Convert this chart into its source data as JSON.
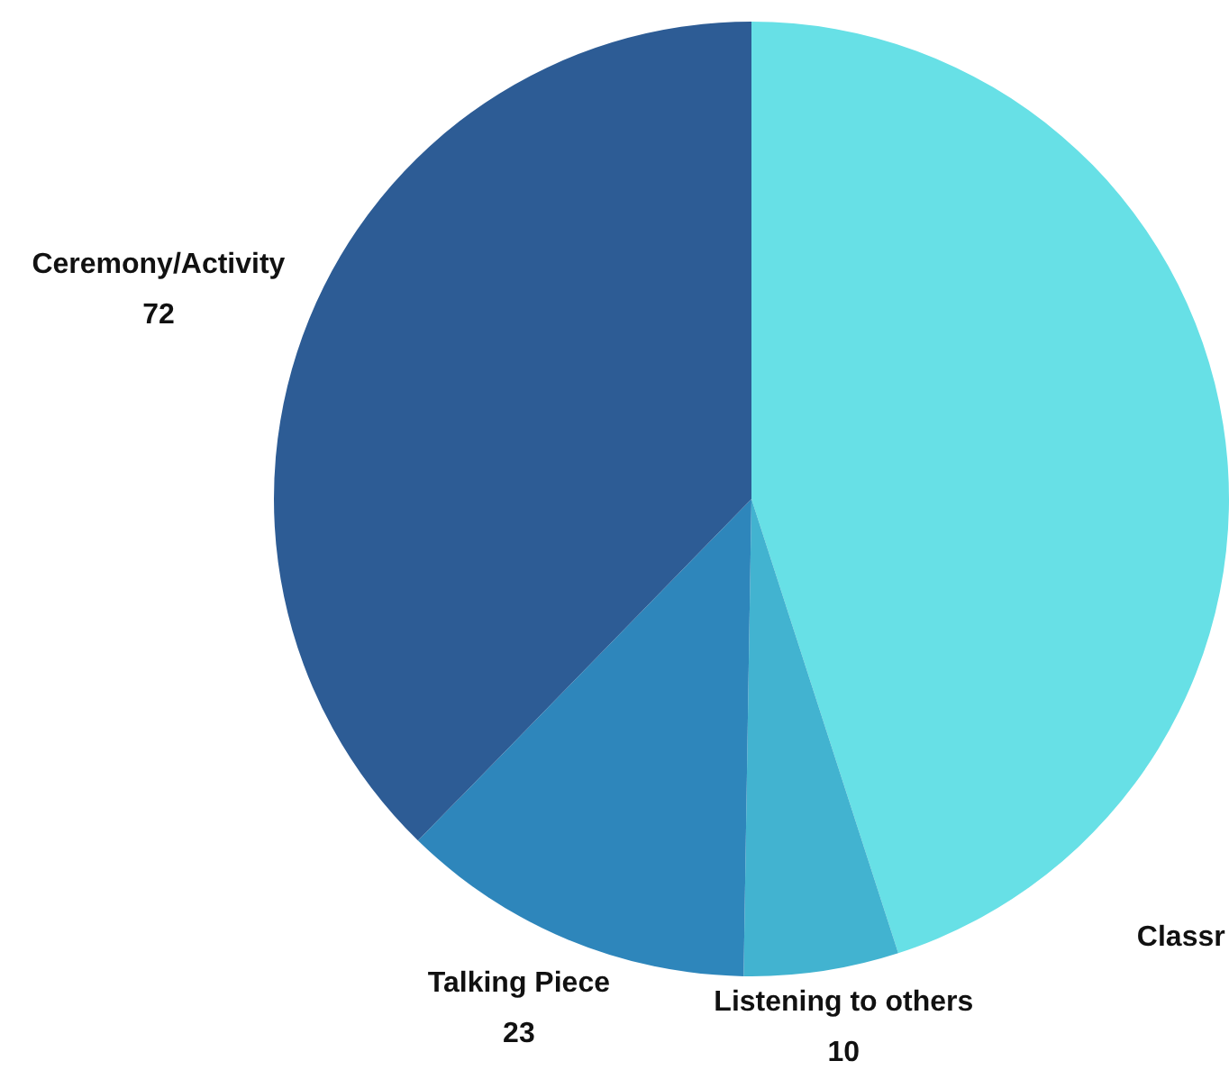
{
  "chart_data": {
    "type": "pie",
    "categories": [
      "Classr",
      "Listening to others",
      "Talking Piece",
      "Ceremony/Activity"
    ],
    "values": [
      86,
      10,
      23,
      72
    ],
    "colors": [
      "#67e0e6",
      "#42b3d0",
      "#2e86bb",
      "#2d5c95"
    ],
    "value_labels": [
      null,
      "10",
      "23",
      "72"
    ]
  }
}
